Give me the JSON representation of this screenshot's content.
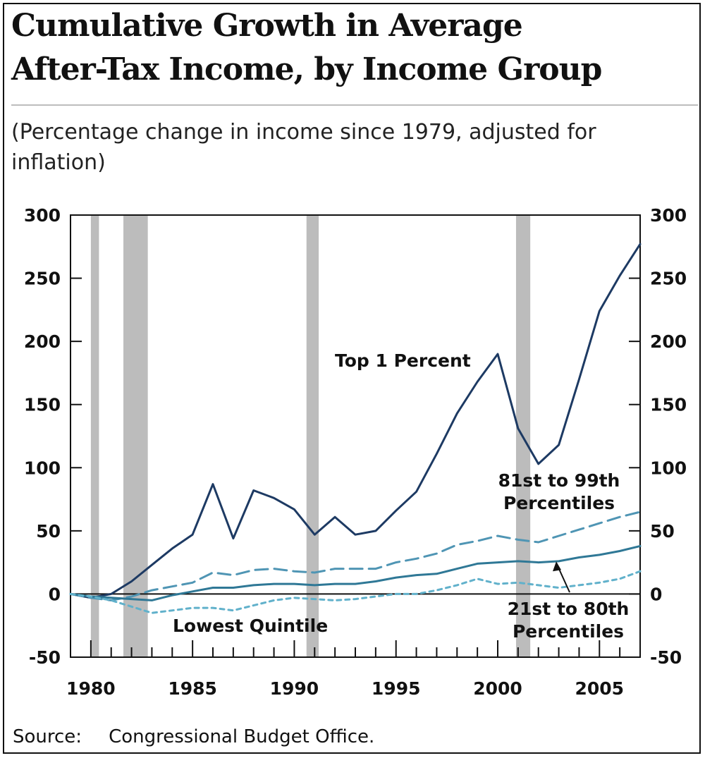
{
  "header": {
    "title_line1": "Cumulative Growth in Average",
    "title_line2": "After-Tax Income, by Income Group",
    "subtitle": "(Percentage change in income since 1979, adjusted for inflation)"
  },
  "footer": {
    "source_label": "Source:",
    "source_text": "Congressional Budget Office."
  },
  "chart_data": {
    "type": "line",
    "title": "Cumulative Growth in Average After-Tax Income, by Income Group",
    "subtitle": "(Percentage change in income since 1979, adjusted for inflation)",
    "xlabel": "",
    "ylabel": "",
    "xlim": [
      1979,
      2007
    ],
    "ylim": [
      -50,
      300
    ],
    "y_ticks": [
      300,
      250,
      200,
      150,
      100,
      50,
      0,
      -50
    ],
    "x_ticks": [
      1980,
      1985,
      1990,
      1995,
      2000,
      2005
    ],
    "grid": false,
    "recessions": [
      [
        1980.0,
        1980.4
      ],
      [
        1981.6,
        1982.8
      ],
      [
        1990.6,
        1991.2
      ],
      [
        2000.9,
        2001.6
      ]
    ],
    "x": [
      1979,
      1980,
      1981,
      1982,
      1983,
      1984,
      1985,
      1986,
      1987,
      1988,
      1989,
      1990,
      1991,
      1992,
      1993,
      1994,
      1995,
      1996,
      1997,
      1998,
      1999,
      2000,
      2001,
      2002,
      2003,
      2004,
      2005,
      2006,
      2007
    ],
    "series": [
      {
        "name": "Top 1 Percent",
        "style": "solid",
        "color": "#1d3a63",
        "values": [
          0,
          -3,
          0,
          10,
          23,
          36,
          47,
          87,
          44,
          82,
          76,
          67,
          47,
          61,
          47,
          50,
          66,
          81,
          111,
          143,
          168,
          190,
          131,
          103,
          118,
          170,
          224,
          252,
          277
        ]
      },
      {
        "name": "81st to 99th Percentiles",
        "style": "dashed",
        "color": "#4f95b4",
        "values": [
          0,
          -3,
          -5,
          -2,
          3,
          6,
          9,
          17,
          15,
          19,
          20,
          18,
          17,
          20,
          20,
          20,
          25,
          28,
          32,
          39,
          42,
          46,
          43,
          41,
          46,
          51,
          56,
          61,
          65
        ]
      },
      {
        "name": "21st to 80th Percentiles",
        "style": "solid",
        "color": "#2f7896",
        "values": [
          0,
          -2,
          -3,
          -4,
          -5,
          -1,
          2,
          5,
          5,
          7,
          8,
          8,
          7,
          8,
          8,
          10,
          13,
          15,
          16,
          20,
          24,
          25,
          26,
          25,
          26,
          29,
          31,
          34,
          38
        ]
      },
      {
        "name": "Lowest Quintile",
        "style": "dotted",
        "color": "#61b1cb",
        "values": [
          0,
          -2,
          -5,
          -10,
          -15,
          -13,
          -11,
          -11,
          -13,
          -9,
          -5,
          -3,
          -4,
          -5,
          -4,
          -2,
          0,
          0,
          3,
          7,
          12,
          8,
          9,
          7,
          5,
          7,
          9,
          12,
          18
        ]
      }
    ]
  }
}
